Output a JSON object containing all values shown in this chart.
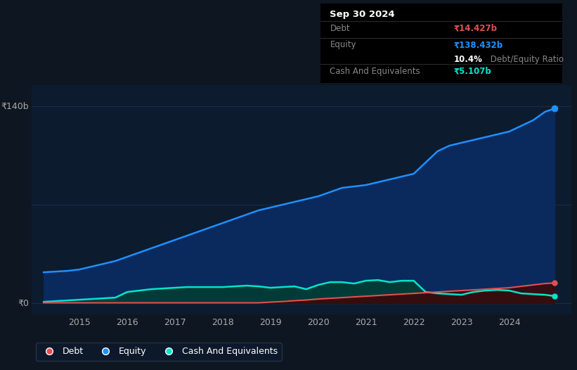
{
  "bg_color": "#0e1621",
  "plot_bg_color": "#0d1b2e",
  "grid_color": "#1e3050",
  "title_box": {
    "date": "Sep 30 2024",
    "debt_label": "Debt",
    "debt_value": "₹14.427b",
    "equity_label": "Equity",
    "equity_value": "₹138.432b",
    "ratio_pct": "10.4%",
    "ratio_label": " Debt/Equity Ratio",
    "cash_label": "Cash And Equivalents",
    "cash_value": "₹5.107b"
  },
  "ylabel_top": "₹140b",
  "ylabel_bottom": "₹0",
  "xlim_start": 2014.0,
  "xlim_end": 2025.3,
  "ylim_min": -8,
  "ylim_max": 155,
  "xtick_years": [
    2015,
    2016,
    2017,
    2018,
    2019,
    2020,
    2021,
    2022,
    2023,
    2024
  ],
  "equity_color": "#1e90ff",
  "equity_fill": "#0a2a5e",
  "debt_color": "#e05050",
  "debt_fill": "#3a0a0a",
  "cash_color": "#00e5cc",
  "cash_fill": "#003d35",
  "legend_items": [
    "Debt",
    "Equity",
    "Cash And Equivalents"
  ],
  "legend_colors": [
    "#e05050",
    "#1e90ff",
    "#00e5cc"
  ],
  "equity_x": [
    2014.25,
    2014.5,
    2014.75,
    2015.0,
    2015.25,
    2015.5,
    2015.75,
    2016.0,
    2016.25,
    2016.5,
    2016.75,
    2017.0,
    2017.25,
    2017.5,
    2017.75,
    2018.0,
    2018.25,
    2018.5,
    2018.75,
    2019.0,
    2019.25,
    2019.5,
    2019.75,
    2020.0,
    2020.25,
    2020.5,
    2020.75,
    2021.0,
    2021.25,
    2021.5,
    2021.75,
    2022.0,
    2022.25,
    2022.5,
    2022.75,
    2023.0,
    2023.25,
    2023.5,
    2023.75,
    2024.0,
    2024.25,
    2024.5,
    2024.75,
    2024.95
  ],
  "equity_y": [
    22,
    22.5,
    23,
    24,
    26,
    28,
    30,
    33,
    36,
    39,
    42,
    45,
    48,
    51,
    54,
    57,
    60,
    63,
    66,
    68,
    70,
    72,
    74,
    76,
    79,
    82,
    83,
    84,
    86,
    88,
    90,
    92,
    100,
    108,
    112,
    114,
    116,
    118,
    120,
    122,
    126,
    130,
    136,
    138.4
  ],
  "debt_x": [
    2014.25,
    2014.5,
    2014.75,
    2015.0,
    2015.25,
    2015.5,
    2015.75,
    2016.0,
    2016.25,
    2016.5,
    2016.75,
    2017.0,
    2017.25,
    2017.5,
    2017.75,
    2018.0,
    2018.25,
    2018.5,
    2018.75,
    2019.0,
    2019.25,
    2019.5,
    2019.75,
    2020.0,
    2020.25,
    2020.5,
    2020.75,
    2021.0,
    2021.25,
    2021.5,
    2021.75,
    2022.0,
    2022.25,
    2022.5,
    2022.75,
    2023.0,
    2023.25,
    2023.5,
    2023.75,
    2024.0,
    2024.25,
    2024.5,
    2024.75,
    2024.95
  ],
  "debt_y": [
    0.3,
    0.3,
    0.3,
    0.3,
    0.3,
    0.3,
    0.3,
    0.3,
    0.3,
    0.3,
    0.3,
    0.3,
    0.3,
    0.3,
    0.3,
    0.3,
    0.3,
    0.3,
    0.3,
    0.8,
    1.2,
    1.8,
    2.3,
    3.0,
    3.5,
    4.0,
    4.5,
    5.0,
    5.5,
    6.0,
    6.5,
    7.0,
    7.5,
    8.0,
    8.5,
    9.0,
    9.5,
    10.0,
    10.5,
    11.0,
    12.0,
    13.0,
    14.0,
    14.4
  ],
  "cash_x": [
    2014.25,
    2014.5,
    2014.75,
    2015.0,
    2015.25,
    2015.5,
    2015.75,
    2016.0,
    2016.25,
    2016.5,
    2016.75,
    2017.0,
    2017.25,
    2017.5,
    2017.75,
    2018.0,
    2018.25,
    2018.5,
    2018.75,
    2019.0,
    2019.25,
    2019.5,
    2019.75,
    2020.0,
    2020.25,
    2020.5,
    2020.75,
    2021.0,
    2021.25,
    2021.5,
    2021.75,
    2022.0,
    2022.25,
    2022.5,
    2022.75,
    2023.0,
    2023.25,
    2023.5,
    2023.75,
    2024.0,
    2024.25,
    2024.5,
    2024.75,
    2024.95
  ],
  "cash_y": [
    1.0,
    1.5,
    2.0,
    2.5,
    3.0,
    3.5,
    4.0,
    8.0,
    9.0,
    10.0,
    10.5,
    11.0,
    11.5,
    11.5,
    11.5,
    11.5,
    12.0,
    12.5,
    12.0,
    11.0,
    11.5,
    12.0,
    10.0,
    13.0,
    15.0,
    15.0,
    14.0,
    16.0,
    16.5,
    15.0,
    16.0,
    16.0,
    8.0,
    7.0,
    6.5,
    6.0,
    8.0,
    9.0,
    9.5,
    9.0,
    7.0,
    6.5,
    6.0,
    5.1
  ]
}
